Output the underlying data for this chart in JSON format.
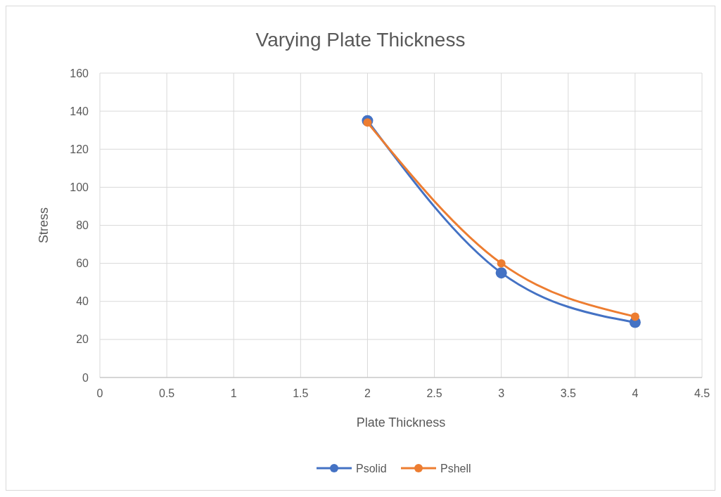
{
  "chart_data": {
    "type": "line",
    "title": "Varying Plate Thickness",
    "xlabel": "Plate Thickness",
    "ylabel": "Stress",
    "x": [
      2,
      3,
      4
    ],
    "series": [
      {
        "name": "Psolid",
        "color": "#4472c4",
        "values": [
          135,
          55,
          29
        ]
      },
      {
        "name": "Pshell",
        "color": "#ed7d31",
        "values": [
          134,
          60,
          32
        ]
      }
    ],
    "xlim": [
      0,
      4.5
    ],
    "xticks": [
      0,
      0.5,
      1,
      1.5,
      2,
      2.5,
      3,
      3.5,
      4,
      4.5
    ],
    "ylim": [
      0,
      160
    ],
    "yticks": [
      0,
      20,
      40,
      60,
      80,
      100,
      120,
      140,
      160
    ],
    "grid": true,
    "legend": "bottom",
    "marker": "circle",
    "line_style": "solid"
  }
}
